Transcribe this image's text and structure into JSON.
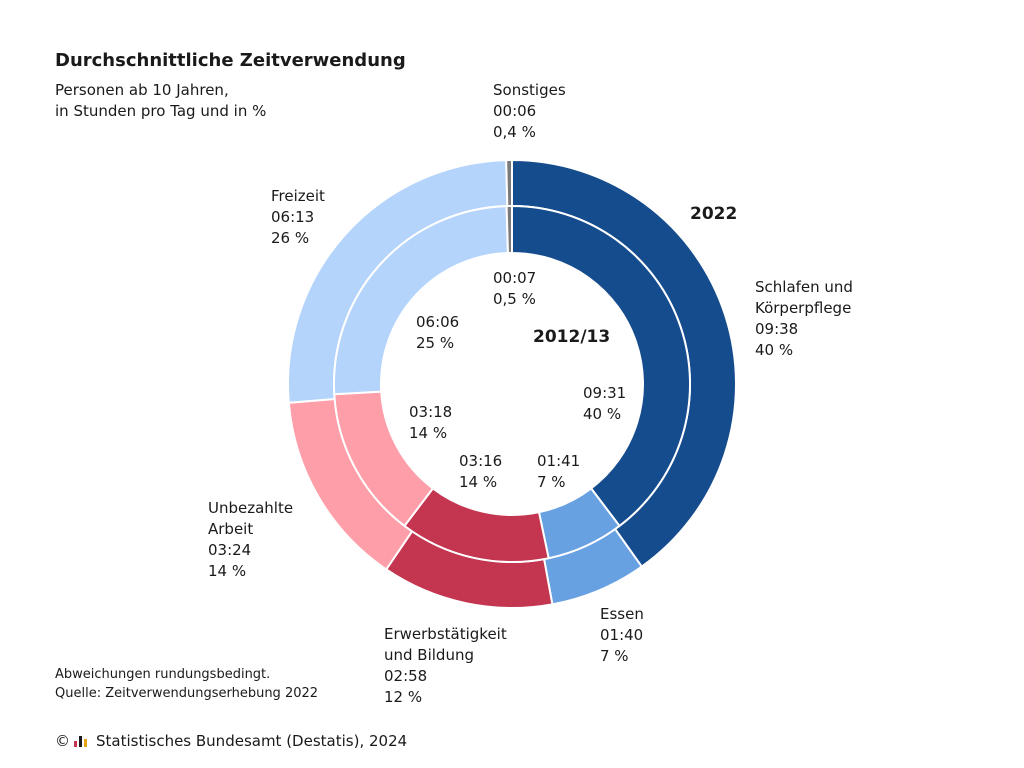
{
  "title": "Durchschnittliche Zeitverwendung",
  "subtitle": [
    "Personen ab 10 Jahren,",
    "in Stunden pro Tag und in %"
  ],
  "footnote": [
    "Abweichungen rundungsbedingt.",
    "Quelle: Zeitverwendungserhebung 2022"
  ],
  "copyright": {
    "symbol": "©",
    "text": "Statistisches Bundesamt (Destatis), 2024"
  },
  "colors": {
    "schlafen": "#154c8e",
    "essen": "#68a1e2",
    "erwerb": "#c4354f",
    "unbezahlt": "#fd9ea8",
    "freizeit": "#b4d4fb",
    "sonstiges": "#7a7a7a"
  },
  "chart_data": {
    "type": "pie",
    "variant": "nested-donut",
    "categories": [
      "Schlafen und Körperpflege",
      "Essen",
      "Erwerbstätigkeit und Bildung",
      "Unbezahlte Arbeit",
      "Freizeit",
      "Sonstiges"
    ],
    "series": [
      {
        "name": "2022",
        "ring": "outer",
        "time": [
          "09:38",
          "01:40",
          "02:58",
          "03:24",
          "06:13",
          "00:06"
        ],
        "minutes": [
          578,
          100,
          178,
          204,
          373,
          6
        ],
        "percent_labels": [
          "40 %",
          "7 %",
          "12 %",
          "14 %",
          "26 %",
          "0,4 %"
        ]
      },
      {
        "name": "2012/13",
        "ring": "inner",
        "time": [
          "09:31",
          "01:41",
          "03:16",
          "03:18",
          "06:06",
          "00:07"
        ],
        "minutes": [
          571,
          101,
          196,
          198,
          366,
          7
        ],
        "percent_labels": [
          "40 %",
          "7 %",
          "14 %",
          "14 %",
          "25 %",
          "0,5 %"
        ]
      }
    ],
    "outer_labels": [
      [
        "Schlafen und",
        "Körperpflege",
        "09:38",
        "40 %"
      ],
      [
        "Essen",
        "01:40",
        "7 %"
      ],
      [
        "Erwerbstätigkeit",
        "und Bildung",
        "02:58",
        "12 %"
      ],
      [
        "Unbezahlte",
        "Arbeit",
        "03:24",
        "14 %"
      ],
      [
        "Freizeit",
        "06:13",
        "26 %"
      ],
      [
        "Sonstiges",
        "00:06",
        "0,4 %"
      ]
    ],
    "inner_labels": [
      [
        "09:31",
        "40 %"
      ],
      [
        "01:41",
        "7 %"
      ],
      [
        "03:16",
        "14 %"
      ],
      [
        "03:18",
        "14 %"
      ],
      [
        "06:06",
        "25 %"
      ],
      [
        "00:07",
        "0,5 %"
      ]
    ],
    "legend": "none"
  }
}
